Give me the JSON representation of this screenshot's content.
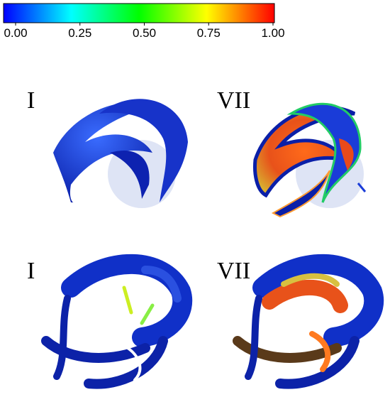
{
  "colorbar": {
    "range": [
      0,
      1
    ],
    "colors": [
      "#0000ff",
      "#00ffff",
      "#00ff00",
      "#ffff00",
      "#ff0000"
    ],
    "ticks": [
      {
        "value": 0,
        "label": "0.00"
      },
      {
        "value": 0.25,
        "label": "0.25"
      },
      {
        "value": 0.5,
        "label": "0.50"
      },
      {
        "value": 0.75,
        "label": "0.75"
      },
      {
        "value": 1,
        "label": "1.00"
      }
    ]
  },
  "panels": [
    {
      "label": "I"
    },
    {
      "label": "VII"
    },
    {
      "label": "I"
    },
    {
      "label": "VII"
    }
  ]
}
